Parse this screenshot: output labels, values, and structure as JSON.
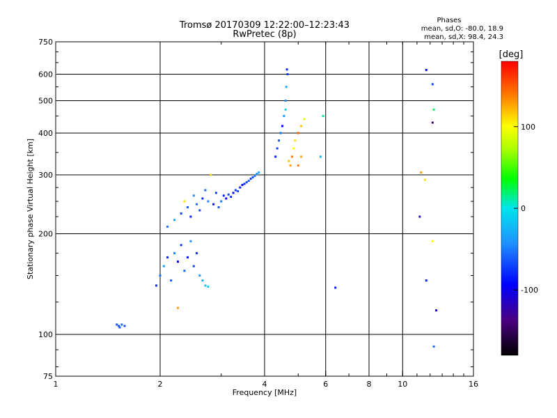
{
  "chart_data": {
    "type": "scatter",
    "title": "Tromsø 20170309 12:22:00–12:23:43",
    "subtitle": "RwPretec (8p)",
    "xlabel": "Frequency [MHz]",
    "ylabel": "Stationary phase Virtual Height [km]",
    "x_scale": "log",
    "y_scale": "log",
    "xlim": [
      1,
      16
    ],
    "ylim": [
      75,
      750
    ],
    "x_ticks": [
      {
        "value": 1,
        "label": "1"
      },
      {
        "value": 2,
        "label": "2"
      },
      {
        "value": 4,
        "label": "4"
      },
      {
        "value": 6,
        "label": "6"
      },
      {
        "value": 8,
        "label": "8"
      },
      {
        "value": 10,
        "label": "10"
      },
      {
        "value": 16,
        "label": "16"
      }
    ],
    "y_ticks": [
      {
        "value": 75,
        "label": "75"
      },
      {
        "value": 100,
        "label": "100"
      },
      {
        "value": 200,
        "label": "200"
      },
      {
        "value": 300,
        "label": "300"
      },
      {
        "value": 400,
        "label": "400"
      },
      {
        "value": 500,
        "label": "500"
      },
      {
        "value": 600,
        "label": "600"
      },
      {
        "value": 750,
        "label": "750"
      }
    ],
    "x_gridlines": [
      2,
      4,
      6,
      8,
      10
    ],
    "y_gridlines": [
      100,
      200,
      300,
      400,
      500,
      600
    ],
    "grid": true,
    "stats_box": {
      "heading": "Phases",
      "line1": "mean, sd,O: -80.0, 18.9",
      "line2": "mean, sd,X:  98.4, 24.3"
    },
    "colorbar": {
      "label": "[deg]",
      "range": [
        -180,
        180
      ],
      "ticks": [
        {
          "value": 100,
          "label": "100"
        },
        {
          "value": 0,
          "label": "0"
        },
        {
          "value": -100,
          "label": "-100"
        }
      ]
    },
    "points": [
      {
        "x": 1.5,
        "y": 107,
        "phase": -70
      },
      {
        "x": 1.52,
        "y": 106,
        "phase": -75
      },
      {
        "x": 1.55,
        "y": 107,
        "phase": -65
      },
      {
        "x": 1.58,
        "y": 106,
        "phase": -72
      },
      {
        "x": 1.53,
        "y": 105,
        "phase": -68
      },
      {
        "x": 1.95,
        "y": 140,
        "phase": -85
      },
      {
        "x": 2.0,
        "y": 150,
        "phase": -60
      },
      {
        "x": 2.05,
        "y": 160,
        "phase": -40
      },
      {
        "x": 2.1,
        "y": 170,
        "phase": -90
      },
      {
        "x": 2.15,
        "y": 145,
        "phase": -70
      },
      {
        "x": 2.2,
        "y": 175,
        "phase": -55
      },
      {
        "x": 2.25,
        "y": 165,
        "phase": -100
      },
      {
        "x": 2.3,
        "y": 185,
        "phase": -80
      },
      {
        "x": 2.35,
        "y": 155,
        "phase": -65
      },
      {
        "x": 2.4,
        "y": 170,
        "phase": -95
      },
      {
        "x": 2.45,
        "y": 190,
        "phase": -50
      },
      {
        "x": 2.5,
        "y": 160,
        "phase": -75
      },
      {
        "x": 2.55,
        "y": 175,
        "phase": -85
      },
      {
        "x": 2.6,
        "y": 150,
        "phase": -45
      },
      {
        "x": 2.65,
        "y": 145,
        "phase": -30
      },
      {
        "x": 2.7,
        "y": 140,
        "phase": -20
      },
      {
        "x": 2.1,
        "y": 210,
        "phase": -60
      },
      {
        "x": 2.2,
        "y": 220,
        "phase": -40
      },
      {
        "x": 2.3,
        "y": 230,
        "phase": -80
      },
      {
        "x": 2.35,
        "y": 250,
        "phase": 110
      },
      {
        "x": 2.4,
        "y": 240,
        "phase": -70
      },
      {
        "x": 2.45,
        "y": 225,
        "phase": -90
      },
      {
        "x": 2.5,
        "y": 260,
        "phase": -50
      },
      {
        "x": 2.55,
        "y": 245,
        "phase": -60
      },
      {
        "x": 2.6,
        "y": 235,
        "phase": -75
      },
      {
        "x": 2.65,
        "y": 255,
        "phase": -85
      },
      {
        "x": 2.7,
        "y": 270,
        "phase": -65
      },
      {
        "x": 2.75,
        "y": 250,
        "phase": -55
      },
      {
        "x": 2.8,
        "y": 300,
        "phase": 110
      },
      {
        "x": 2.85,
        "y": 245,
        "phase": -95
      },
      {
        "x": 2.9,
        "y": 265,
        "phase": -80
      },
      {
        "x": 2.95,
        "y": 240,
        "phase": -70
      },
      {
        "x": 3.0,
        "y": 250,
        "phase": -60
      },
      {
        "x": 3.05,
        "y": 260,
        "phase": -90
      },
      {
        "x": 3.1,
        "y": 255,
        "phase": -100
      },
      {
        "x": 3.15,
        "y": 262,
        "phase": -75
      },
      {
        "x": 3.2,
        "y": 258,
        "phase": -85
      },
      {
        "x": 3.25,
        "y": 265,
        "phase": -95
      },
      {
        "x": 3.3,
        "y": 270,
        "phase": -80
      },
      {
        "x": 3.35,
        "y": 268,
        "phase": -70
      },
      {
        "x": 3.4,
        "y": 275,
        "phase": -90
      },
      {
        "x": 3.45,
        "y": 280,
        "phase": -100
      },
      {
        "x": 3.5,
        "y": 282,
        "phase": -85
      },
      {
        "x": 3.55,
        "y": 285,
        "phase": -75
      },
      {
        "x": 3.6,
        "y": 288,
        "phase": -65
      },
      {
        "x": 3.65,
        "y": 292,
        "phase": -80
      },
      {
        "x": 3.7,
        "y": 295,
        "phase": -70
      },
      {
        "x": 3.75,
        "y": 298,
        "phase": -60
      },
      {
        "x": 3.8,
        "y": 302,
        "phase": -50
      },
      {
        "x": 3.85,
        "y": 305,
        "phase": -40
      },
      {
        "x": 2.25,
        "y": 120,
        "phase": 130
      },
      {
        "x": 2.75,
        "y": 139,
        "phase": -10
      },
      {
        "x": 4.3,
        "y": 340,
        "phase": -90
      },
      {
        "x": 4.35,
        "y": 360,
        "phase": -80
      },
      {
        "x": 4.4,
        "y": 380,
        "phase": -70
      },
      {
        "x": 4.45,
        "y": 400,
        "phase": -60
      },
      {
        "x": 4.5,
        "y": 420,
        "phase": -100
      },
      {
        "x": 4.55,
        "y": 450,
        "phase": -40
      },
      {
        "x": 4.6,
        "y": 500,
        "phase": -50
      },
      {
        "x": 4.62,
        "y": 550,
        "phase": -30
      },
      {
        "x": 4.64,
        "y": 620,
        "phase": -90
      },
      {
        "x": 4.66,
        "y": 600,
        "phase": -80
      },
      {
        "x": 4.6,
        "y": 470,
        "phase": -10
      },
      {
        "x": 4.7,
        "y": 330,
        "phase": 120
      },
      {
        "x": 4.75,
        "y": 320,
        "phase": 130
      },
      {
        "x": 4.8,
        "y": 340,
        "phase": 140
      },
      {
        "x": 4.85,
        "y": 360,
        "phase": 100
      },
      {
        "x": 4.9,
        "y": 380,
        "phase": 110
      },
      {
        "x": 5.0,
        "y": 400,
        "phase": 150
      },
      {
        "x": 5.1,
        "y": 420,
        "phase": 120
      },
      {
        "x": 5.2,
        "y": 440,
        "phase": 90
      },
      {
        "x": 5.0,
        "y": 320,
        "phase": 140
      },
      {
        "x": 5.1,
        "y": 340,
        "phase": 130
      },
      {
        "x": 5.9,
        "y": 450,
        "phase": 10
      },
      {
        "x": 5.8,
        "y": 340,
        "phase": -30
      },
      {
        "x": 6.4,
        "y": 138,
        "phase": -90
      },
      {
        "x": 11.3,
        "y": 305,
        "phase": 130
      },
      {
        "x": 11.6,
        "y": 290,
        "phase": 110
      },
      {
        "x": 11.2,
        "y": 225,
        "phase": -120
      },
      {
        "x": 11.7,
        "y": 145,
        "phase": -90
      },
      {
        "x": 12.2,
        "y": 190,
        "phase": 100
      },
      {
        "x": 12.5,
        "y": 118,
        "phase": -110
      },
      {
        "x": 11.7,
        "y": 618,
        "phase": -100
      },
      {
        "x": 12.2,
        "y": 560,
        "phase": -80
      },
      {
        "x": 12.3,
        "y": 470,
        "phase": 20
      },
      {
        "x": 12.2,
        "y": 430,
        "phase": -150
      },
      {
        "x": 12.3,
        "y": 92,
        "phase": -60
      }
    ]
  }
}
